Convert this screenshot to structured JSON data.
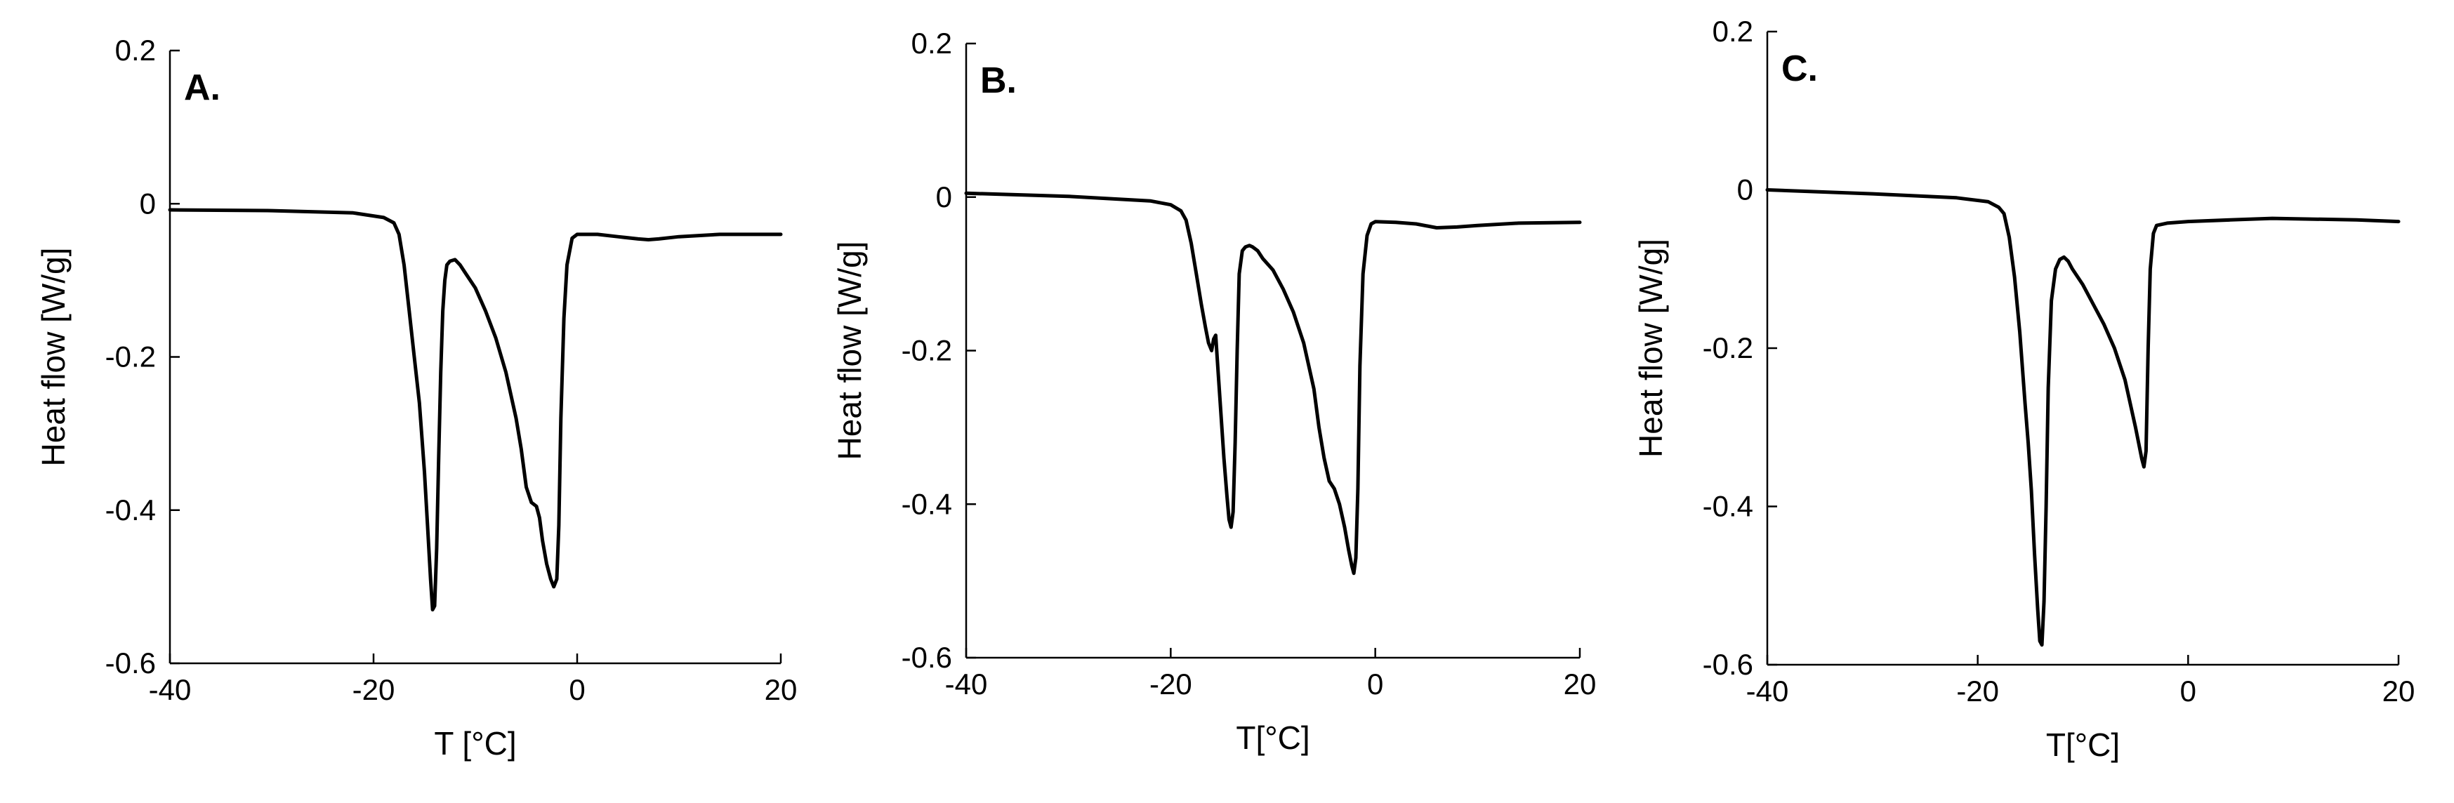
{
  "chart_data": [
    {
      "type": "line",
      "panel_label": "A.",
      "xlabel": "T [°C]",
      "ylabel": "Heat flow [W/g]",
      "xlim": [
        -40,
        20
      ],
      "ylim": [
        -0.6,
        0.2
      ],
      "xticks": [
        -40,
        -20,
        0,
        20
      ],
      "yticks": [
        0.2,
        0,
        -0.2,
        -0.4,
        -0.6
      ],
      "xtick_labels": [
        "-40",
        "-20",
        "0",
        "20"
      ],
      "ytick_labels": [
        "0.2",
        "0",
        "-0.2",
        "-0.4",
        "-0.6"
      ],
      "grid": false,
      "series": [
        {
          "x": [
            -40,
            -30,
            -22,
            -19,
            -18,
            -17.5,
            -17,
            -16.5,
            -16,
            -15.5,
            -15,
            -14.7,
            -14.4,
            -14.2,
            -14.0,
            -13.8,
            -13.6,
            -13.4,
            -13.2,
            -13.0,
            -12.8,
            -12.5,
            -12,
            -11.5,
            -11,
            -10,
            -9,
            -8,
            -7,
            -6,
            -5.5,
            -5,
            -4.5,
            -4,
            -3.7,
            -3.4,
            -3,
            -2.6,
            -2.3,
            -2.0,
            -1.8,
            -1.6,
            -1.3,
            -1.0,
            -0.5,
            0,
            2,
            4,
            6,
            7,
            8,
            10,
            14,
            20
          ],
          "y": [
            -0.008,
            -0.009,
            -0.012,
            -0.018,
            -0.025,
            -0.04,
            -0.08,
            -0.14,
            -0.2,
            -0.26,
            -0.35,
            -0.42,
            -0.49,
            -0.53,
            -0.525,
            -0.45,
            -0.33,
            -0.22,
            -0.14,
            -0.1,
            -0.08,
            -0.075,
            -0.073,
            -0.08,
            -0.09,
            -0.11,
            -0.14,
            -0.175,
            -0.22,
            -0.28,
            -0.32,
            -0.37,
            -0.39,
            -0.395,
            -0.41,
            -0.44,
            -0.47,
            -0.49,
            -0.5,
            -0.49,
            -0.42,
            -0.28,
            -0.15,
            -0.08,
            -0.045,
            -0.04,
            -0.04,
            -0.043,
            -0.046,
            -0.047,
            -0.046,
            -0.043,
            -0.04,
            -0.04
          ]
        }
      ]
    },
    {
      "type": "line",
      "panel_label": "B.",
      "xlabel": "T[°C]",
      "ylabel": "Heat flow [W/g]",
      "xlim": [
        -40,
        20
      ],
      "ylim": [
        -0.6,
        0.2
      ],
      "xticks": [
        -40,
        -20,
        0,
        20
      ],
      "yticks": [
        0.2,
        0,
        -0.2,
        -0.4,
        -0.6
      ],
      "xtick_labels": [
        "-40",
        "-20",
        "0",
        "20"
      ],
      "ytick_labels": [
        "0.2",
        "0",
        "-0.2",
        "-0.4",
        "-0.6"
      ],
      "grid": false,
      "series": [
        {
          "x": [
            -40,
            -30,
            -22,
            -20,
            -19,
            -18.5,
            -18,
            -17.5,
            -17,
            -16.6,
            -16.3,
            -16.0,
            -15.8,
            -15.6,
            -15.4,
            -15.1,
            -14.8,
            -14.5,
            -14.3,
            -14.1,
            -13.9,
            -13.7,
            -13.5,
            -13.3,
            -13.0,
            -12.7,
            -12.3,
            -12,
            -11.5,
            -11,
            -10,
            -9,
            -8,
            -7,
            -6,
            -5.5,
            -5,
            -4.5,
            -4,
            -3.5,
            -3.0,
            -2.6,
            -2.3,
            -2.1,
            -1.9,
            -1.7,
            -1.5,
            -1.2,
            -0.8,
            -0.4,
            0,
            2,
            4,
            6,
            8,
            10,
            14,
            20
          ],
          "y": [
            0.005,
            0.001,
            -0.005,
            -0.01,
            -0.018,
            -0.03,
            -0.06,
            -0.1,
            -0.14,
            -0.17,
            -0.19,
            -0.2,
            -0.185,
            -0.18,
            -0.22,
            -0.28,
            -0.34,
            -0.39,
            -0.42,
            -0.43,
            -0.41,
            -0.32,
            -0.2,
            -0.1,
            -0.07,
            -0.065,
            -0.063,
            -0.065,
            -0.07,
            -0.08,
            -0.095,
            -0.12,
            -0.15,
            -0.19,
            -0.25,
            -0.3,
            -0.34,
            -0.37,
            -0.38,
            -0.4,
            -0.43,
            -0.46,
            -0.48,
            -0.49,
            -0.47,
            -0.38,
            -0.22,
            -0.1,
            -0.05,
            -0.035,
            -0.032,
            -0.033,
            -0.035,
            -0.04,
            -0.039,
            -0.037,
            -0.034,
            -0.033
          ]
        }
      ]
    },
    {
      "type": "line",
      "panel_label": "C.",
      "xlabel": "T[°C]",
      "ylabel": "Heat flow [W/g]",
      "xlim": [
        -40,
        20
      ],
      "ylim": [
        -0.6,
        0.2
      ],
      "xticks": [
        -40,
        -20,
        0,
        20
      ],
      "yticks": [
        0.2,
        0,
        -0.2,
        -0.4,
        -0.6
      ],
      "xtick_labels": [
        "-40",
        "-20",
        "0",
        "20"
      ],
      "ytick_labels": [
        "0.2",
        "0",
        "-0.2",
        "-0.4",
        "-0.6"
      ],
      "grid": false,
      "series": [
        {
          "x": [
            -40,
            -30,
            -22,
            -19,
            -18,
            -17.5,
            -17,
            -16.5,
            -16,
            -15.5,
            -15.2,
            -14.9,
            -14.6,
            -14.3,
            -14.1,
            -13.9,
            -13.7,
            -13.5,
            -13.3,
            -13.0,
            -12.6,
            -12.2,
            -11.8,
            -11.4,
            -11,
            -10,
            -9,
            -8,
            -7,
            -6,
            -5.5,
            -5.0,
            -4.7,
            -4.4,
            -4.2,
            -4.0,
            -3.8,
            -3.6,
            -3.3,
            -3.0,
            -2,
            0,
            4,
            8,
            12,
            16,
            20
          ],
          "y": [
            0,
            -0.005,
            -0.01,
            -0.015,
            -0.022,
            -0.03,
            -0.06,
            -0.11,
            -0.18,
            -0.27,
            -0.32,
            -0.38,
            -0.46,
            -0.53,
            -0.57,
            -0.575,
            -0.52,
            -0.4,
            -0.25,
            -0.14,
            -0.1,
            -0.088,
            -0.085,
            -0.09,
            -0.1,
            -0.12,
            -0.145,
            -0.17,
            -0.2,
            -0.24,
            -0.27,
            -0.3,
            -0.32,
            -0.34,
            -0.35,
            -0.33,
            -0.2,
            -0.1,
            -0.055,
            -0.045,
            -0.042,
            -0.04,
            -0.038,
            -0.036,
            -0.037,
            -0.038,
            -0.04
          ]
        }
      ]
    }
  ]
}
